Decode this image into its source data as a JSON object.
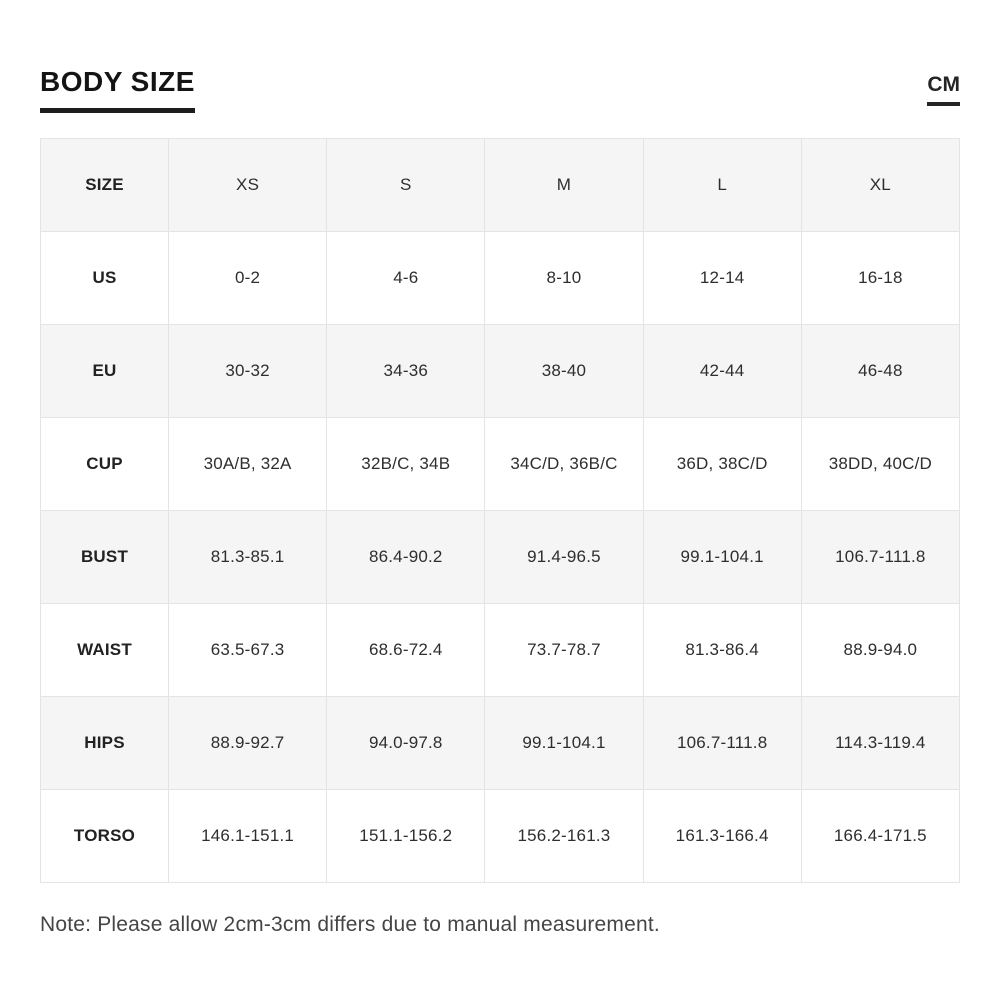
{
  "header": {
    "title": "BODY SIZE",
    "unit_label": "CM"
  },
  "chart_data": {
    "type": "table",
    "title": "BODY SIZE",
    "unit": "CM",
    "columns": [
      "SIZE",
      "XS",
      "S",
      "M",
      "L",
      "XL"
    ],
    "rows": [
      {
        "label": "US",
        "values": [
          "0-2",
          "4-6",
          "8-10",
          "12-14",
          "16-18"
        ]
      },
      {
        "label": "EU",
        "values": [
          "30-32",
          "34-36",
          "38-40",
          "42-44",
          "46-48"
        ]
      },
      {
        "label": "CUP",
        "values": [
          "30A/B, 32A",
          "32B/C, 34B",
          "34C/D, 36B/C",
          "36D, 38C/D",
          "38DD, 40C/D"
        ]
      },
      {
        "label": "BUST",
        "values": [
          "81.3-85.1",
          "86.4-90.2",
          "91.4-96.5",
          "99.1-104.1",
          "106.7-111.8"
        ]
      },
      {
        "label": "WAIST",
        "values": [
          "63.5-67.3",
          "68.6-72.4",
          "73.7-78.7",
          "81.3-86.4",
          "88.9-94.0"
        ]
      },
      {
        "label": "HIPS",
        "values": [
          "88.9-92.7",
          "94.0-97.8",
          "99.1-104.1",
          "106.7-111.8",
          "114.3-119.4"
        ]
      },
      {
        "label": "TORSO",
        "values": [
          "146.1-151.1",
          "151.1-156.2",
          "156.2-161.3",
          "161.3-166.4",
          "166.4-171.5"
        ]
      }
    ],
    "note": "Note: Please allow 2cm-3cm differs due to manual measurement.",
    "layout_hints": {
      "shaded_rows": [
        "header",
        "EU",
        "BUST",
        "HIPS"
      ],
      "grid": "on"
    }
  },
  "footer": {
    "note": "Note: Please allow 2cm-3cm differs due to manual measurement."
  },
  "colors": {
    "row_alt_bg": "#f5f5f5",
    "grid_border": "#e4e4e4",
    "cell_text": "#2e2e2e",
    "title_text": "#141414",
    "note_text": "#454545"
  }
}
